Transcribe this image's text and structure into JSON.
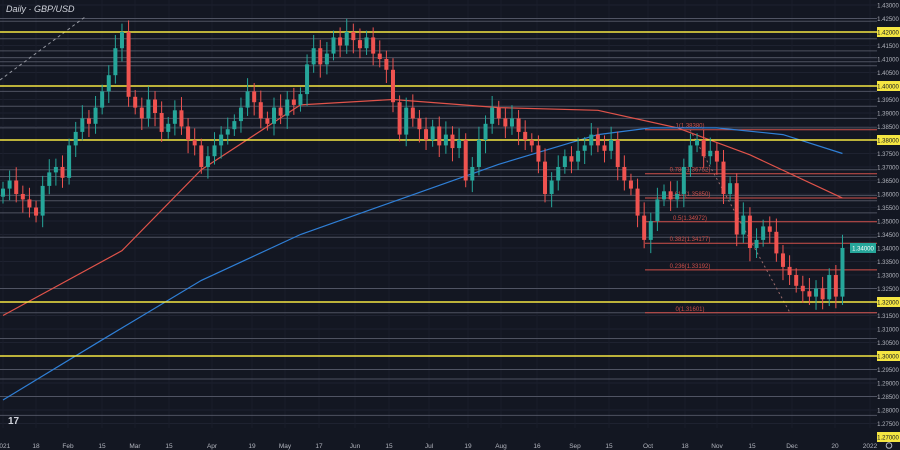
{
  "header": {
    "title": "Daily · GBP/USD"
  },
  "chart_data": {
    "type": "candlestick",
    "symbol": "GBP/USD",
    "interval": "Daily",
    "ylim": [
      1.268,
      1.432
    ],
    "y_ticks": [
      "1.43000",
      "1.42500",
      "1.42000",
      "1.41500",
      "1.41000",
      "1.40500",
      "1.40000",
      "1.39500",
      "1.39000",
      "1.38500",
      "1.38000",
      "1.37500",
      "1.37000",
      "1.36500",
      "1.36000",
      "1.35500",
      "1.35000",
      "1.34500",
      "1.34000",
      "1.33500",
      "1.33000",
      "1.32500",
      "1.32000",
      "1.31500",
      "1.31000",
      "1.30500",
      "1.30000",
      "1.29500",
      "1.29000",
      "1.28500",
      "1.28000",
      "1.27500",
      "1.27000"
    ],
    "x_ticks": [
      "2021",
      "18",
      "Feb",
      "15",
      "Mar",
      "15",
      "Apr",
      "19",
      "May",
      "17",
      "Jun",
      "15",
      "Jul",
      "19",
      "Aug",
      "16",
      "Sep",
      "15",
      "Oct",
      "18",
      "Nov",
      "15",
      "Dec",
      "20",
      "2022"
    ],
    "closes": [
      1.362,
      1.365,
      1.36,
      1.358,
      1.355,
      1.352,
      1.363,
      1.368,
      1.37,
      1.366,
      1.378,
      1.383,
      1.388,
      1.386,
      1.392,
      1.398,
      1.404,
      1.414,
      1.42,
      1.396,
      1.392,
      1.388,
      1.395,
      1.39,
      1.383,
      1.386,
      1.391,
      1.385,
      1.38,
      1.378,
      1.37,
      1.374,
      1.378,
      1.382,
      1.384,
      1.387,
      1.392,
      1.398,
      1.394,
      1.388,
      1.386,
      1.392,
      1.389,
      1.395,
      1.393,
      1.397,
      1.408,
      1.414,
      1.408,
      1.412,
      1.418,
      1.415,
      1.42,
      1.417,
      1.414,
      1.418,
      1.412,
      1.41,
      1.406,
      1.394,
      1.382,
      1.392,
      1.388,
      1.384,
      1.38,
      1.385,
      1.378,
      1.382,
      1.377,
      1.38,
      1.365,
      1.37,
      1.38,
      1.386,
      1.392,
      1.388,
      1.385,
      1.388,
      1.383,
      1.38,
      1.378,
      1.372,
      1.36,
      1.365,
      1.37,
      1.374,
      1.372,
      1.376,
      1.378,
      1.382,
      1.378,
      1.376,
      1.38,
      1.37,
      1.365,
      1.362,
      1.352,
      1.343,
      1.35,
      1.358,
      1.361,
      1.358,
      1.36,
      1.37,
      1.378,
      1.38,
      1.374,
      1.376,
      1.372,
      1.36,
      1.364,
      1.345,
      1.352,
      1.34,
      1.343,
      1.348,
      1.346,
      1.338,
      1.333,
      1.33,
      1.326,
      1.324,
      1.322,
      1.325,
      1.321,
      1.33,
      1.322,
      1.34
    ],
    "moving_averages": [
      {
        "color": "#e0534a",
        "points": [
          [
            0,
            1.315
          ],
          [
            18,
            1.339
          ],
          [
            30,
            1.369
          ],
          [
            45,
            1.393
          ],
          [
            59,
            1.395
          ],
          [
            75,
            1.392
          ],
          [
            90,
            1.391
          ],
          [
            102,
            1.3845
          ],
          [
            113,
            1.3745
          ],
          [
            127,
            1.3585
          ]
        ]
      },
      {
        "color": "#2f7fd6",
        "points": [
          [
            0,
            1.2837
          ],
          [
            15,
            1.306
          ],
          [
            30,
            1.328
          ],
          [
            45,
            1.345
          ],
          [
            60,
            1.358
          ],
          [
            75,
            1.371
          ],
          [
            90,
            1.382
          ],
          [
            98,
            1.3845
          ],
          [
            108,
            1.3845
          ],
          [
            118,
            1.382
          ],
          [
            127,
            1.375
          ]
        ]
      }
    ],
    "key_levels": [
      1.42,
      1.4,
      1.38,
      1.32,
      1.3,
      1.27
    ],
    "minor_levels": [
      1.425,
      1.424,
      1.4175,
      1.413,
      1.4105,
      1.409,
      1.4075,
      1.398,
      1.3925,
      1.388,
      1.3845,
      1.369,
      1.3665,
      1.3595,
      1.3575,
      1.353,
      1.344,
      1.325,
      1.316,
      1.3065,
      1.295,
      1.2915,
      1.285,
      1.278
    ],
    "fibonacci": [
      {
        "label": "1(1.38380)",
        "price": 1.3838
      },
      {
        "label": "0.786(1.36752)",
        "price": 1.36752
      },
      {
        "label": "0.618(1.35850)",
        "price": 1.3585
      },
      {
        "label": "0.5(1.34972)",
        "price": 1.34972
      },
      {
        "label": "0.382(1.34177)",
        "price": 1.34177
      },
      {
        "label": "0.236(1.33192)",
        "price": 1.33192
      },
      {
        "label": "0(1.31601)",
        "price": 1.31601
      }
    ],
    "last_price": {
      "label": "1.34000",
      "price": 1.34
    },
    "colors": {
      "up": "#26a69a",
      "down": "#ef5350",
      "key_level": "#f5e642",
      "fib": "#d0504a",
      "background": "#131722"
    }
  }
}
